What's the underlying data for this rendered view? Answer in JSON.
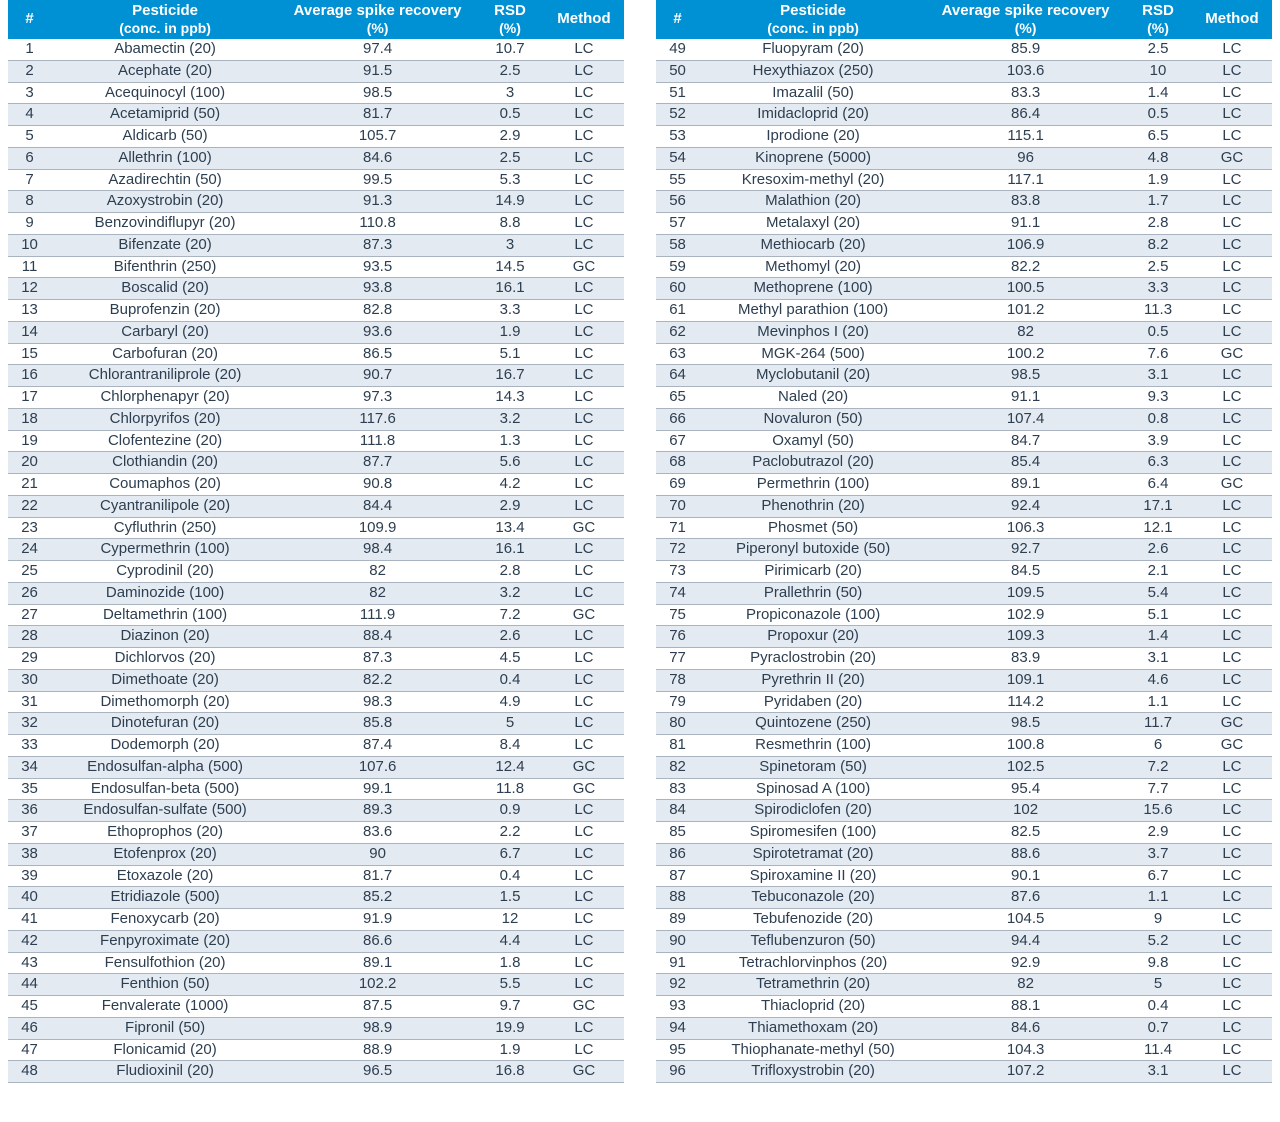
{
  "style": {
    "header_bg": "#0091d4",
    "header_fg": "#ffffff",
    "row_alt_bg": "#e4eaf1",
    "row_bg": "#ffffff",
    "row_border": "#a9b4c0",
    "text_color": "#2c3e50",
    "font_family": "Segoe UI, Helvetica Neue, Arial, sans-serif",
    "header_font_size_pt": 11,
    "body_font_size_pt": 11
  },
  "columns": [
    {
      "key": "num",
      "label": "#",
      "sublabel": "",
      "width_pct": 7
    },
    {
      "key": "pesticide",
      "label": "Pesticide",
      "sublabel": "(conc. in ppb)",
      "width_pct": 37
    },
    {
      "key": "recovery",
      "label": "Average spike recovery",
      "sublabel": "(%)",
      "width_pct": 32
    },
    {
      "key": "rsd",
      "label": "RSD",
      "sublabel": "(%)",
      "width_pct": 11
    },
    {
      "key": "method",
      "label": "Method",
      "sublabel": "",
      "width_pct": 13
    }
  ],
  "rows": [
    {
      "num": 1,
      "pesticide": "Abamectin (20)",
      "recovery": "97.4",
      "rsd": "10.7",
      "method": "LC"
    },
    {
      "num": 2,
      "pesticide": "Acephate (20)",
      "recovery": "91.5",
      "rsd": "2.5",
      "method": "LC"
    },
    {
      "num": 3,
      "pesticide": "Acequinocyl (100)",
      "recovery": "98.5",
      "rsd": "3",
      "method": "LC"
    },
    {
      "num": 4,
      "pesticide": "Acetamiprid (50)",
      "recovery": "81.7",
      "rsd": "0.5",
      "method": "LC"
    },
    {
      "num": 5,
      "pesticide": "Aldicarb (50)",
      "recovery": "105.7",
      "rsd": "2.9",
      "method": "LC"
    },
    {
      "num": 6,
      "pesticide": "Allethrin (100)",
      "recovery": "84.6",
      "rsd": "2.5",
      "method": "LC"
    },
    {
      "num": 7,
      "pesticide": "Azadirechtin (50)",
      "recovery": "99.5",
      "rsd": "5.3",
      "method": "LC"
    },
    {
      "num": 8,
      "pesticide": "Azoxystrobin (20)",
      "recovery": "91.3",
      "rsd": "14.9",
      "method": "LC"
    },
    {
      "num": 9,
      "pesticide": "Benzovindiflupyr (20)",
      "recovery": "110.8",
      "rsd": "8.8",
      "method": "LC"
    },
    {
      "num": 10,
      "pesticide": "Bifenzate (20)",
      "recovery": "87.3",
      "rsd": "3",
      "method": "LC"
    },
    {
      "num": 11,
      "pesticide": "Bifenthrin (250)",
      "recovery": "93.5",
      "rsd": "14.5",
      "method": "GC"
    },
    {
      "num": 12,
      "pesticide": "Boscalid (20)",
      "recovery": "93.8",
      "rsd": "16.1",
      "method": "LC"
    },
    {
      "num": 13,
      "pesticide": "Buprofenzin (20)",
      "recovery": "82.8",
      "rsd": "3.3",
      "method": "LC"
    },
    {
      "num": 14,
      "pesticide": "Carbaryl (20)",
      "recovery": "93.6",
      "rsd": "1.9",
      "method": "LC"
    },
    {
      "num": 15,
      "pesticide": "Carbofuran (20)",
      "recovery": "86.5",
      "rsd": "5.1",
      "method": "LC"
    },
    {
      "num": 16,
      "pesticide": "Chlorantraniliprole (20)",
      "recovery": "90.7",
      "rsd": "16.7",
      "method": "LC"
    },
    {
      "num": 17,
      "pesticide": "Chlorphenapyr (20)",
      "recovery": "97.3",
      "rsd": "14.3",
      "method": "LC"
    },
    {
      "num": 18,
      "pesticide": "Chlorpyrifos (20)",
      "recovery": "117.6",
      "rsd": "3.2",
      "method": "LC"
    },
    {
      "num": 19,
      "pesticide": "Clofentezine (20)",
      "recovery": "111.8",
      "rsd": "1.3",
      "method": "LC"
    },
    {
      "num": 20,
      "pesticide": "Clothiandin (20)",
      "recovery": "87.7",
      "rsd": "5.6",
      "method": "LC"
    },
    {
      "num": 21,
      "pesticide": "Coumaphos (20)",
      "recovery": "90.8",
      "rsd": "4.2",
      "method": "LC"
    },
    {
      "num": 22,
      "pesticide": "Cyantranilipole (20)",
      "recovery": "84.4",
      "rsd": "2.9",
      "method": "LC"
    },
    {
      "num": 23,
      "pesticide": "Cyfluthrin (250)",
      "recovery": "109.9",
      "rsd": "13.4",
      "method": "GC"
    },
    {
      "num": 24,
      "pesticide": "Cypermethrin (100)",
      "recovery": "98.4",
      "rsd": "16.1",
      "method": "LC"
    },
    {
      "num": 25,
      "pesticide": "Cyprodinil (20)",
      "recovery": "82",
      "rsd": "2.8",
      "method": "LC"
    },
    {
      "num": 26,
      "pesticide": "Daminozide (100)",
      "recovery": "82",
      "rsd": "3.2",
      "method": "LC"
    },
    {
      "num": 27,
      "pesticide": "Deltamethrin (100)",
      "recovery": "111.9",
      "rsd": "7.2",
      "method": "GC"
    },
    {
      "num": 28,
      "pesticide": "Diazinon (20)",
      "recovery": "88.4",
      "rsd": "2.6",
      "method": "LC"
    },
    {
      "num": 29,
      "pesticide": "Dichlorvos (20)",
      "recovery": "87.3",
      "rsd": "4.5",
      "method": "LC"
    },
    {
      "num": 30,
      "pesticide": "Dimethoate (20)",
      "recovery": "82.2",
      "rsd": "0.4",
      "method": "LC"
    },
    {
      "num": 31,
      "pesticide": "Dimethomorph (20)",
      "recovery": "98.3",
      "rsd": "4.9",
      "method": "LC"
    },
    {
      "num": 32,
      "pesticide": "Dinotefuran (20)",
      "recovery": "85.8",
      "rsd": "5",
      "method": "LC"
    },
    {
      "num": 33,
      "pesticide": "Dodemorph (20)",
      "recovery": "87.4",
      "rsd": "8.4",
      "method": "LC"
    },
    {
      "num": 34,
      "pesticide": "Endosulfan-alpha (500)",
      "recovery": "107.6",
      "rsd": "12.4",
      "method": "GC"
    },
    {
      "num": 35,
      "pesticide": "Endosulfan-beta (500)",
      "recovery": "99.1",
      "rsd": "11.8",
      "method": "GC"
    },
    {
      "num": 36,
      "pesticide": "Endosulfan-sulfate (500)",
      "recovery": "89.3",
      "rsd": "0.9",
      "method": "LC"
    },
    {
      "num": 37,
      "pesticide": "Ethoprophos (20)",
      "recovery": "83.6",
      "rsd": "2.2",
      "method": "LC"
    },
    {
      "num": 38,
      "pesticide": "Etofenprox (20)",
      "recovery": "90",
      "rsd": "6.7",
      "method": "LC"
    },
    {
      "num": 39,
      "pesticide": "Etoxazole (20)",
      "recovery": "81.7",
      "rsd": "0.4",
      "method": "LC"
    },
    {
      "num": 40,
      "pesticide": "Etridiazole (500)",
      "recovery": "85.2",
      "rsd": "1.5",
      "method": "LC"
    },
    {
      "num": 41,
      "pesticide": "Fenoxycarb (20)",
      "recovery": "91.9",
      "rsd": "12",
      "method": "LC"
    },
    {
      "num": 42,
      "pesticide": "Fenpyroximate (20)",
      "recovery": "86.6",
      "rsd": "4.4",
      "method": "LC"
    },
    {
      "num": 43,
      "pesticide": "Fensulfothion (20)",
      "recovery": "89.1",
      "rsd": "1.8",
      "method": "LC"
    },
    {
      "num": 44,
      "pesticide": "Fenthion (50)",
      "recovery": "102.2",
      "rsd": "5.5",
      "method": "LC"
    },
    {
      "num": 45,
      "pesticide": "Fenvalerate (1000)",
      "recovery": "87.5",
      "rsd": "9.7",
      "method": "GC"
    },
    {
      "num": 46,
      "pesticide": "Fipronil (50)",
      "recovery": "98.9",
      "rsd": "19.9",
      "method": "LC"
    },
    {
      "num": 47,
      "pesticide": "Flonicamid (20)",
      "recovery": "88.9",
      "rsd": "1.9",
      "method": "LC"
    },
    {
      "num": 48,
      "pesticide": "Fludioxinil (20)",
      "recovery": "96.5",
      "rsd": "16.8",
      "method": "GC"
    },
    {
      "num": 49,
      "pesticide": "Fluopyram (20)",
      "recovery": "85.9",
      "rsd": "2.5",
      "method": "LC"
    },
    {
      "num": 50,
      "pesticide": "Hexythiazox (250)",
      "recovery": "103.6",
      "rsd": "10",
      "method": "LC"
    },
    {
      "num": 51,
      "pesticide": "Imazalil (50)",
      "recovery": "83.3",
      "rsd": "1.4",
      "method": "LC"
    },
    {
      "num": 52,
      "pesticide": "Imidacloprid (20)",
      "recovery": "86.4",
      "rsd": "0.5",
      "method": "LC"
    },
    {
      "num": 53,
      "pesticide": "Iprodione (20)",
      "recovery": "115.1",
      "rsd": "6.5",
      "method": "LC"
    },
    {
      "num": 54,
      "pesticide": "Kinoprene (5000)",
      "recovery": "96",
      "rsd": "4.8",
      "method": "GC"
    },
    {
      "num": 55,
      "pesticide": "Kresoxim-methyl (20)",
      "recovery": "117.1",
      "rsd": "1.9",
      "method": "LC"
    },
    {
      "num": 56,
      "pesticide": "Malathion (20)",
      "recovery": "83.8",
      "rsd": "1.7",
      "method": "LC"
    },
    {
      "num": 57,
      "pesticide": "Metalaxyl (20)",
      "recovery": "91.1",
      "rsd": "2.8",
      "method": "LC"
    },
    {
      "num": 58,
      "pesticide": "Methiocarb (20)",
      "recovery": "106.9",
      "rsd": "8.2",
      "method": "LC"
    },
    {
      "num": 59,
      "pesticide": "Methomyl (20)",
      "recovery": "82.2",
      "rsd": "2.5",
      "method": "LC"
    },
    {
      "num": 60,
      "pesticide": "Methoprene (100)",
      "recovery": "100.5",
      "rsd": "3.3",
      "method": "LC"
    },
    {
      "num": 61,
      "pesticide": "Methyl parathion (100)",
      "recovery": "101.2",
      "rsd": "11.3",
      "method": "LC"
    },
    {
      "num": 62,
      "pesticide": "Mevinphos I (20)",
      "recovery": "82",
      "rsd": "0.5",
      "method": "LC"
    },
    {
      "num": 63,
      "pesticide": "MGK-264 (500)",
      "recovery": "100.2",
      "rsd": "7.6",
      "method": "GC"
    },
    {
      "num": 64,
      "pesticide": "Myclobutanil (20)",
      "recovery": "98.5",
      "rsd": "3.1",
      "method": "LC"
    },
    {
      "num": 65,
      "pesticide": "Naled (20)",
      "recovery": "91.1",
      "rsd": "9.3",
      "method": "LC"
    },
    {
      "num": 66,
      "pesticide": "Novaluron (50)",
      "recovery": "107.4",
      "rsd": "0.8",
      "method": "LC"
    },
    {
      "num": 67,
      "pesticide": "Oxamyl (50)",
      "recovery": "84.7",
      "rsd": "3.9",
      "method": "LC"
    },
    {
      "num": 68,
      "pesticide": "Paclobutrazol (20)",
      "recovery": "85.4",
      "rsd": "6.3",
      "method": "LC"
    },
    {
      "num": 69,
      "pesticide": "Permethrin (100)",
      "recovery": "89.1",
      "rsd": "6.4",
      "method": "GC"
    },
    {
      "num": 70,
      "pesticide": "Phenothrin (20)",
      "recovery": "92.4",
      "rsd": "17.1",
      "method": "LC"
    },
    {
      "num": 71,
      "pesticide": "Phosmet (50)",
      "recovery": "106.3",
      "rsd": "12.1",
      "method": "LC"
    },
    {
      "num": 72,
      "pesticide": "Piperonyl butoxide (50)",
      "recovery": "92.7",
      "rsd": "2.6",
      "method": "LC"
    },
    {
      "num": 73,
      "pesticide": "Pirimicarb (20)",
      "recovery": "84.5",
      "rsd": "2.1",
      "method": "LC"
    },
    {
      "num": 74,
      "pesticide": "Prallethrin (50)",
      "recovery": "109.5",
      "rsd": "5.4",
      "method": "LC"
    },
    {
      "num": 75,
      "pesticide": "Propiconazole (100)",
      "recovery": "102.9",
      "rsd": "5.1",
      "method": "LC"
    },
    {
      "num": 76,
      "pesticide": "Propoxur (20)",
      "recovery": "109.3",
      "rsd": "1.4",
      "method": "LC"
    },
    {
      "num": 77,
      "pesticide": "Pyraclostrobin (20)",
      "recovery": "83.9",
      "rsd": "3.1",
      "method": "LC"
    },
    {
      "num": 78,
      "pesticide": "Pyrethrin II (20)",
      "recovery": "109.1",
      "rsd": "4.6",
      "method": "LC"
    },
    {
      "num": 79,
      "pesticide": "Pyridaben (20)",
      "recovery": "114.2",
      "rsd": "1.1",
      "method": "LC"
    },
    {
      "num": 80,
      "pesticide": "Quintozene (250)",
      "recovery": "98.5",
      "rsd": "11.7",
      "method": "GC"
    },
    {
      "num": 81,
      "pesticide": "Resmethrin (100)",
      "recovery": "100.8",
      "rsd": "6",
      "method": "GC"
    },
    {
      "num": 82,
      "pesticide": "Spinetoram (50)",
      "recovery": "102.5",
      "rsd": "7.2",
      "method": "LC"
    },
    {
      "num": 83,
      "pesticide": "Spinosad A (100)",
      "recovery": "95.4",
      "rsd": "7.7",
      "method": "LC"
    },
    {
      "num": 84,
      "pesticide": "Spirodiclofen (20)",
      "recovery": "102",
      "rsd": "15.6",
      "method": "LC"
    },
    {
      "num": 85,
      "pesticide": "Spiromesifen (100)",
      "recovery": "82.5",
      "rsd": "2.9",
      "method": "LC"
    },
    {
      "num": 86,
      "pesticide": "Spirotetramat (20)",
      "recovery": "88.6",
      "rsd": "3.7",
      "method": "LC"
    },
    {
      "num": 87,
      "pesticide": "Spiroxamine II (20)",
      "recovery": "90.1",
      "rsd": "6.7",
      "method": "LC"
    },
    {
      "num": 88,
      "pesticide": "Tebuconazole (20)",
      "recovery": "87.6",
      "rsd": "1.1",
      "method": "LC"
    },
    {
      "num": 89,
      "pesticide": "Tebufenozide (20)",
      "recovery": "104.5",
      "rsd": "9",
      "method": "LC"
    },
    {
      "num": 90,
      "pesticide": "Teflubenzuron (50)",
      "recovery": "94.4",
      "rsd": "5.2",
      "method": "LC"
    },
    {
      "num": 91,
      "pesticide": "Tetrachlorvinphos (20)",
      "recovery": "92.9",
      "rsd": "9.8",
      "method": "LC"
    },
    {
      "num": 92,
      "pesticide": "Tetramethrin (20)",
      "recovery": "82",
      "rsd": "5",
      "method": "LC"
    },
    {
      "num": 93,
      "pesticide": "Thiacloprid (20)",
      "recovery": "88.1",
      "rsd": "0.4",
      "method": "LC"
    },
    {
      "num": 94,
      "pesticide": "Thiamethoxam (20)",
      "recovery": "84.6",
      "rsd": "0.7",
      "method": "LC"
    },
    {
      "num": 95,
      "pesticide": "Thiophanate-methyl (50)",
      "recovery": "104.3",
      "rsd": "11.4",
      "method": "LC"
    },
    {
      "num": 96,
      "pesticide": "Trifloxystrobin (20)",
      "recovery": "107.2",
      "rsd": "3.1",
      "method": "LC"
    }
  ],
  "split_after_row": 48
}
